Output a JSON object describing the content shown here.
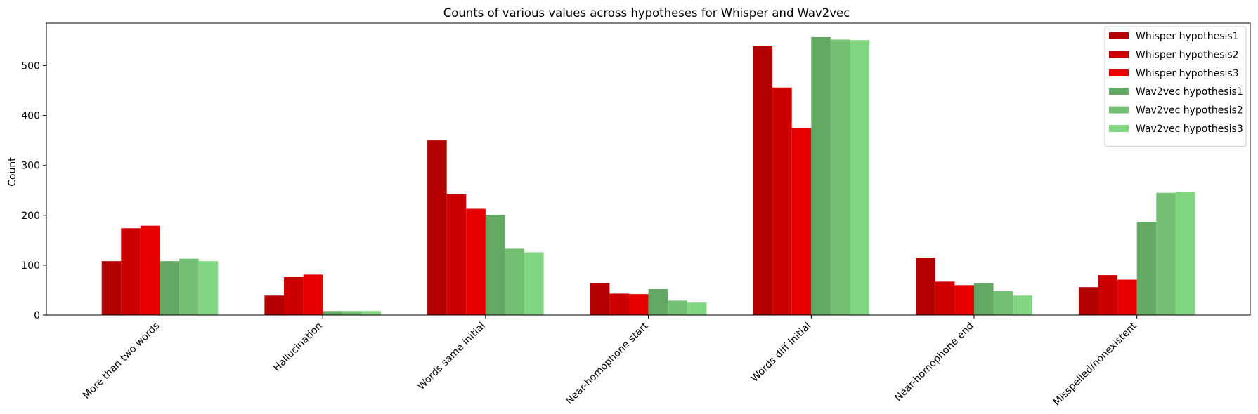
{
  "chart_data": {
    "type": "bar",
    "title": "Counts of various values across hypotheses for Whisper and Wav2vec",
    "xlabel": "",
    "ylabel": "Count",
    "ylim": [
      0,
      585
    ],
    "yticks": [
      0,
      100,
      200,
      300,
      400,
      500
    ],
    "grid": false,
    "legend_position": "top-right",
    "categories": [
      "More than two words",
      "Hallucination",
      "Words same initial",
      "Near-homophone start",
      "Words diff initial",
      "Near-homophone end",
      "Misspelled/nonexistent"
    ],
    "series": [
      {
        "name": "Whisper hypothesis1",
        "color": "#b30000",
        "values": [
          108,
          39,
          350,
          64,
          540,
          115,
          56
        ]
      },
      {
        "name": "Whisper hypothesis2",
        "color": "#cc0000",
        "values": [
          174,
          76,
          242,
          43,
          456,
          67,
          80
        ]
      },
      {
        "name": "Whisper hypothesis3",
        "color": "#e60000",
        "values": [
          179,
          81,
          213,
          42,
          375,
          60,
          71
        ]
      },
      {
        "name": "Wav2vec hypothesis1",
        "color": "#63a863",
        "values": [
          108,
          8,
          201,
          52,
          557,
          64,
          187
        ]
      },
      {
        "name": "Wav2vec hypothesis2",
        "color": "#73bf73",
        "values": [
          113,
          8,
          133,
          29,
          552,
          48,
          245
        ]
      },
      {
        "name": "Wav2vec hypothesis3",
        "color": "#82d682",
        "values": [
          108,
          8,
          126,
          25,
          551,
          39,
          247
        ]
      }
    ]
  }
}
